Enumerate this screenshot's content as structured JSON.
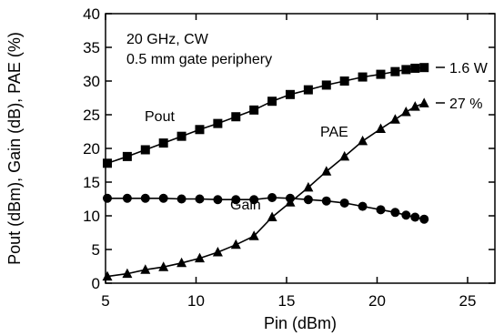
{
  "chart_data": {
    "type": "line",
    "xlabel": "Pin (dBm)",
    "ylabel": "Pout (dBm), Gain (dB), PAE (%)",
    "xlim": [
      5,
      27
    ],
    "ylim": [
      0,
      40
    ],
    "x_ticks": [
      5,
      10,
      15,
      20,
      25
    ],
    "y_ticks": [
      0,
      5,
      10,
      15,
      20,
      25,
      30,
      35,
      40
    ],
    "grid": false,
    "annotations": {
      "line1": "20 GHz, CW",
      "line2": "0.5 mm gate periphery"
    },
    "end_labels": {
      "pout": "1.6 W",
      "pae": "27 %"
    },
    "series": [
      {
        "name": "Pout",
        "marker": "square",
        "x": [
          5.1,
          6.2,
          7.2,
          8.2,
          9.2,
          10.2,
          11.2,
          12.2,
          13.2,
          14.2,
          15.2,
          16.2,
          17.2,
          18.2,
          19.2,
          20.2,
          21.0,
          21.6,
          22.1,
          22.6
        ],
        "y": [
          17.8,
          18.8,
          19.8,
          20.8,
          21.8,
          22.8,
          23.7,
          24.7,
          25.7,
          27.0,
          28.0,
          28.7,
          29.4,
          30.0,
          30.6,
          31.0,
          31.4,
          31.7,
          31.9,
          32.0
        ]
      },
      {
        "name": "Gain",
        "marker": "circle",
        "x": [
          5.1,
          6.2,
          7.2,
          8.2,
          9.2,
          10.2,
          11.2,
          12.2,
          13.2,
          14.2,
          15.2,
          16.2,
          17.2,
          18.2,
          19.2,
          20.2,
          21.0,
          21.6,
          22.1,
          22.6
        ],
        "y": [
          12.6,
          12.6,
          12.6,
          12.6,
          12.5,
          12.5,
          12.4,
          12.4,
          12.4,
          12.7,
          12.6,
          12.4,
          12.2,
          11.9,
          11.4,
          10.9,
          10.5,
          10.1,
          9.8,
          9.5
        ]
      },
      {
        "name": "PAE",
        "marker": "triangle",
        "x": [
          5.1,
          6.2,
          7.2,
          8.2,
          9.2,
          10.2,
          11.2,
          12.2,
          13.2,
          14.2,
          15.2,
          16.2,
          17.2,
          18.2,
          19.2,
          20.2,
          21.0,
          21.6,
          22.1,
          22.6
        ],
        "y": [
          1.0,
          1.4,
          2.0,
          2.4,
          3.0,
          3.7,
          4.6,
          5.7,
          7.0,
          9.8,
          12.0,
          14.2,
          16.6,
          18.8,
          21.1,
          22.9,
          24.3,
          25.4,
          26.2,
          26.7
        ]
      }
    ]
  }
}
